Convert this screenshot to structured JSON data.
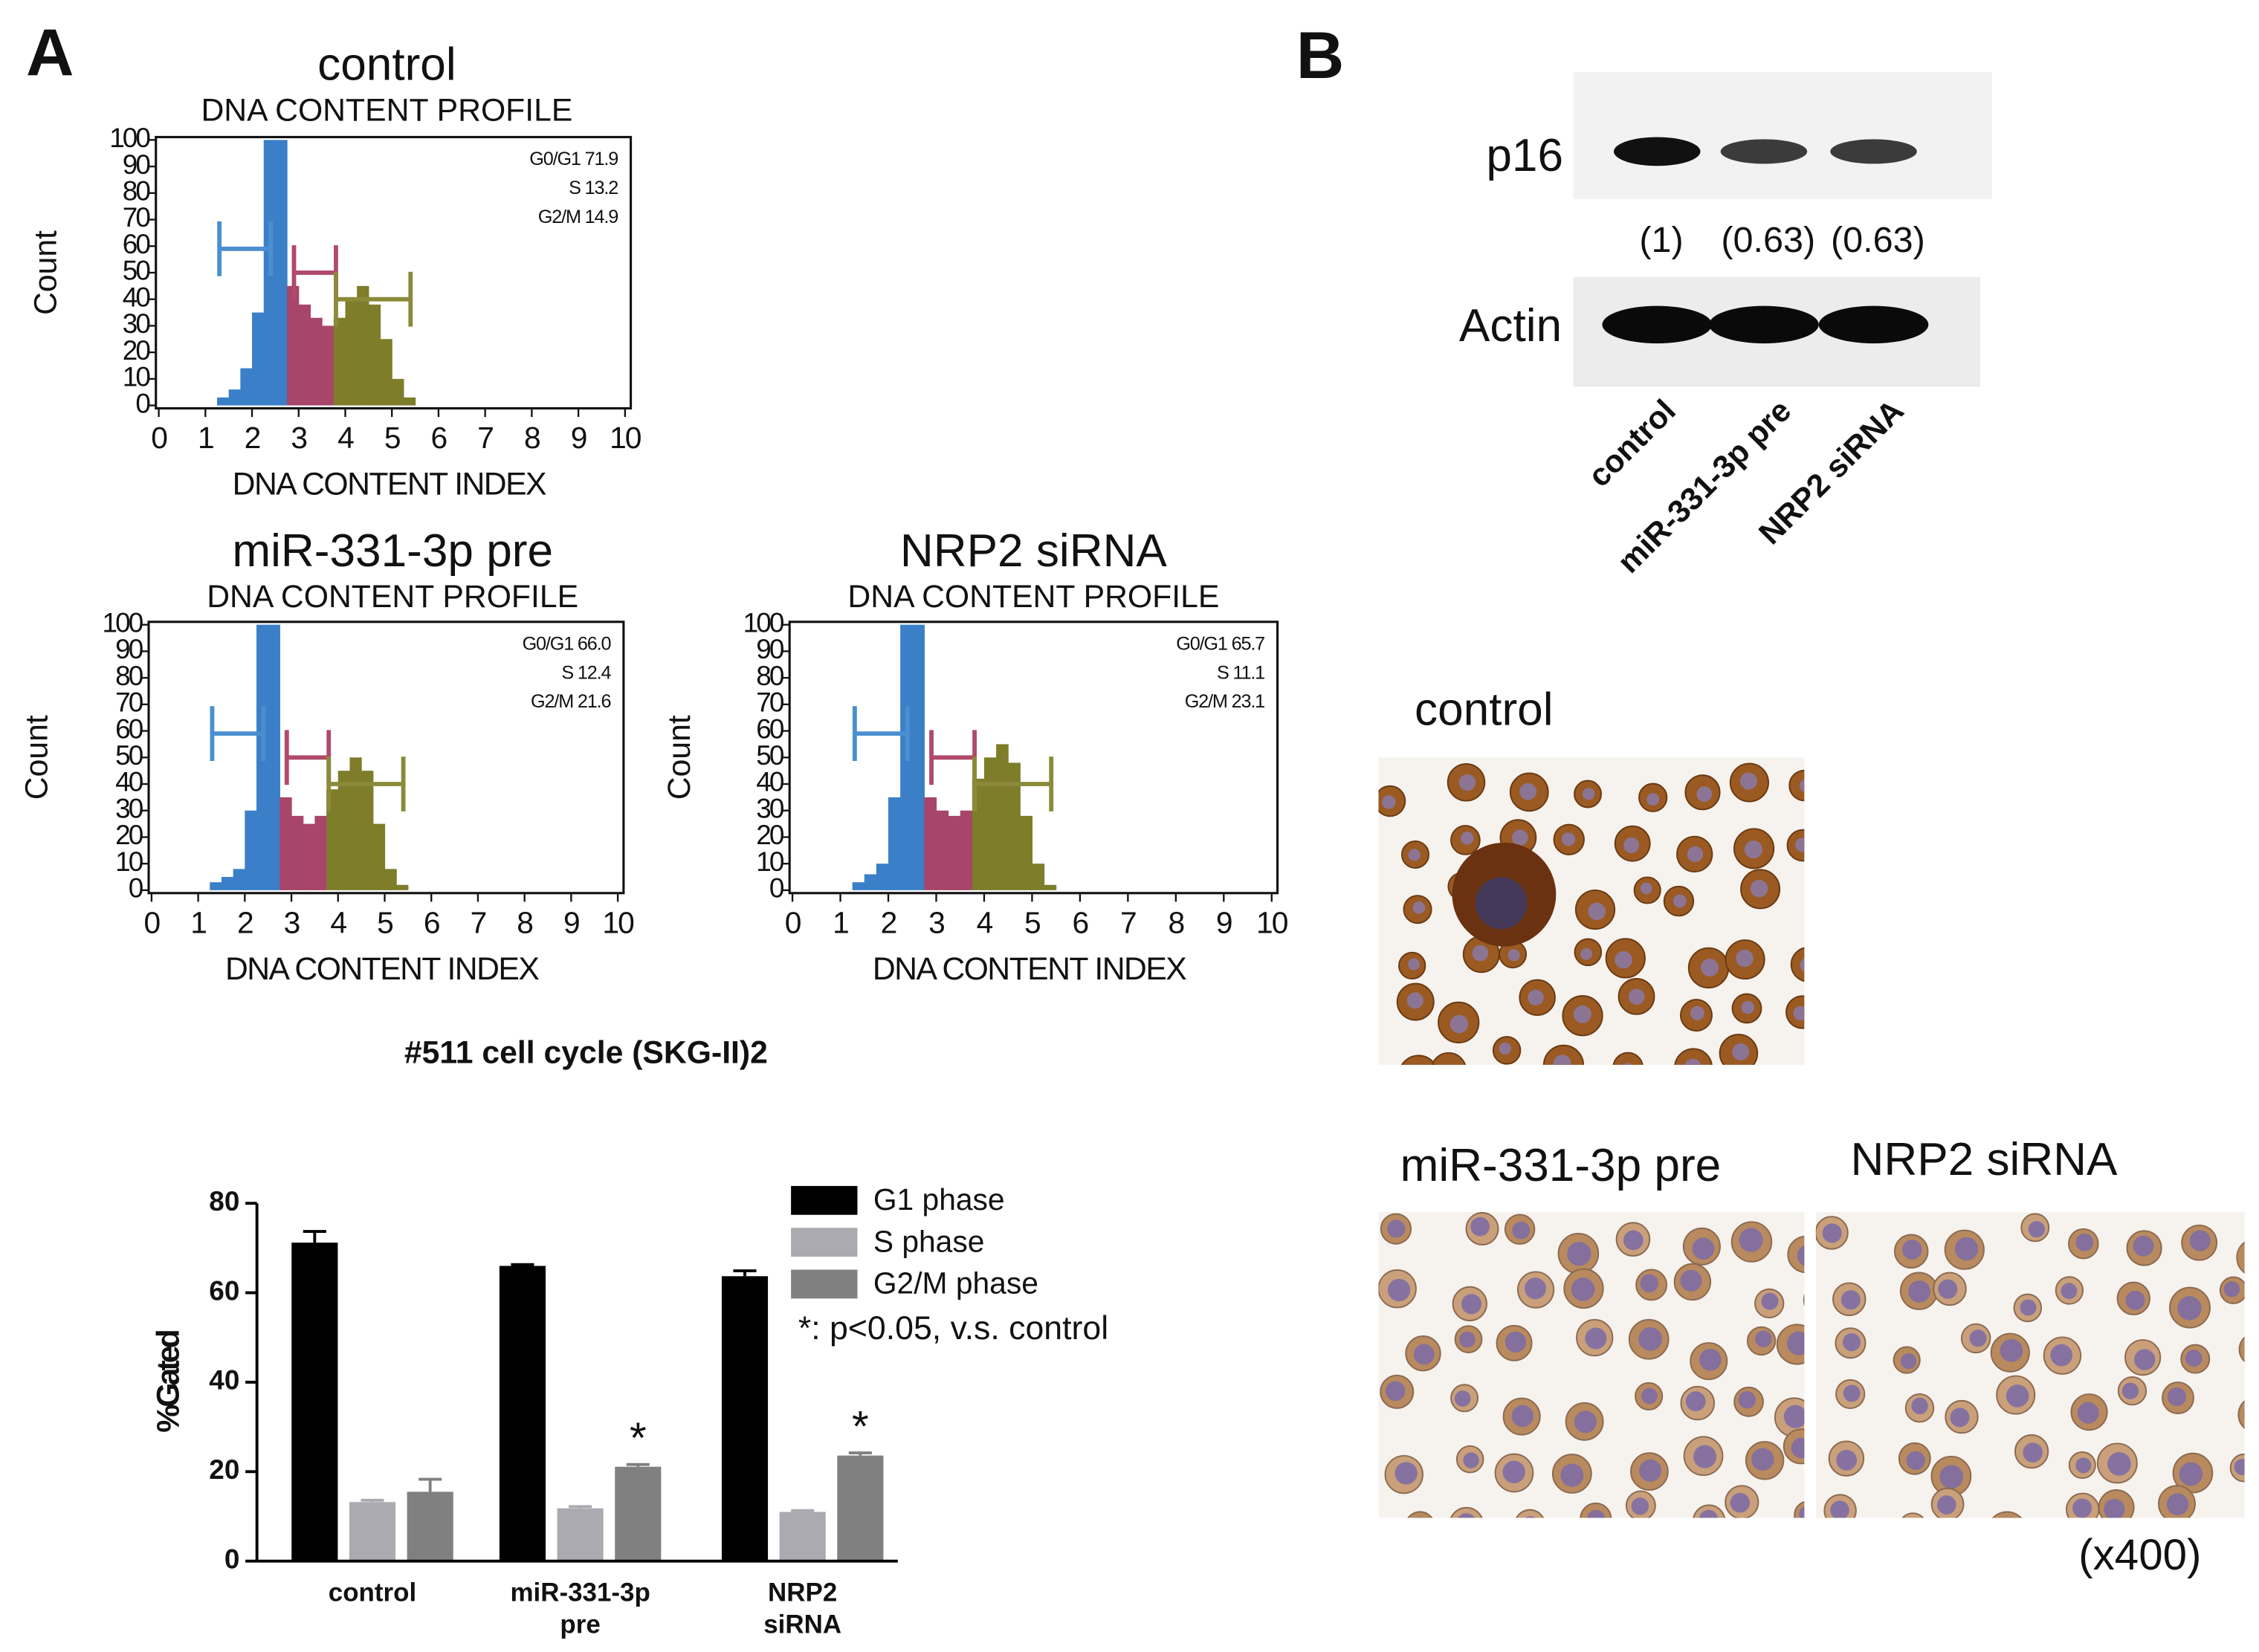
{
  "panel_labels": [
    "A",
    "B"
  ],
  "chart_data": [
    {
      "type": "histogram",
      "title": "control",
      "subtitle": "DNA CONTENT PROFILE",
      "xlabel": "DNA CONTENT INDEX",
      "ylabel": "Count",
      "xlim": [
        0,
        10
      ],
      "xticks": [
        0,
        1,
        2,
        3,
        4,
        5,
        6,
        7,
        8,
        9,
        10
      ],
      "ylim": [
        0,
        100
      ],
      "yticks": [
        0,
        10,
        20,
        30,
        40,
        50,
        60,
        70,
        80,
        90,
        100
      ],
      "annotations": [
        "G0/G1 71.9",
        "S 13.2",
        "G2/M 14.9"
      ],
      "series": [
        {
          "color": "#3a7fc8",
          "bins": [
            1.25,
            1.5,
            1.75,
            2,
            2.25,
            2.5,
            2.75
          ],
          "counts": [
            3,
            6,
            14,
            35,
            100,
            100
          ]
        },
        {
          "color": "#a8456a",
          "bins": [
            2.75,
            3,
            3.25,
            3.5,
            3.75
          ],
          "counts": [
            45,
            38,
            33,
            30
          ]
        },
        {
          "color": "#7d7d2a",
          "bins": [
            3.75,
            4,
            4.25,
            4.5,
            4.75,
            5,
            5.25,
            5.5
          ],
          "counts": [
            33,
            40,
            45,
            38,
            25,
            10,
            3
          ]
        }
      ],
      "gates": [
        {
          "color": "#4a8fd0",
          "x": [
            1.3,
            2.4
          ],
          "y": 59
        },
        {
          "color": "#b04a6a",
          "x": [
            2.9,
            3.8
          ],
          "y": 50
        },
        {
          "color": "#8a8a3a",
          "x": [
            3.8,
            5.4
          ],
          "y": 40
        }
      ]
    },
    {
      "type": "histogram",
      "title": "miR-331-3p pre",
      "subtitle": "DNA CONTENT PROFILE",
      "xlabel": "DNA CONTENT INDEX",
      "ylabel": "Count",
      "xlim": [
        0,
        10
      ],
      "xticks": [
        0,
        1,
        2,
        3,
        4,
        5,
        6,
        7,
        8,
        9,
        10
      ],
      "ylim": [
        0,
        100
      ],
      "yticks": [
        0,
        10,
        20,
        30,
        40,
        50,
        60,
        70,
        80,
        90,
        100
      ],
      "annotations": [
        "G0/G1 66.0",
        "S 12.4",
        "G2/M 21.6"
      ],
      "series": [
        {
          "color": "#3a7fc8",
          "bins": [
            1.25,
            1.5,
            1.75,
            2,
            2.25,
            2.5,
            2.75
          ],
          "counts": [
            3,
            5,
            8,
            30,
            100,
            100
          ]
        },
        {
          "color": "#a8456a",
          "bins": [
            2.75,
            3,
            3.25,
            3.5,
            3.75
          ],
          "counts": [
            35,
            28,
            25,
            28
          ]
        },
        {
          "color": "#7d7d2a",
          "bins": [
            3.75,
            4,
            4.25,
            4.5,
            4.75,
            5,
            5.25,
            5.5
          ],
          "counts": [
            38,
            45,
            50,
            45,
            25,
            8,
            2
          ]
        }
      ],
      "gates": [
        {
          "color": "#4a8fd0",
          "x": [
            1.3,
            2.4
          ],
          "y": 59
        },
        {
          "color": "#b04a6a",
          "x": [
            2.9,
            3.8
          ],
          "y": 50
        },
        {
          "color": "#8a8a3a",
          "x": [
            3.8,
            5.4
          ],
          "y": 40
        }
      ]
    },
    {
      "type": "histogram",
      "title": "NRP2 siRNA",
      "subtitle": "DNA CONTENT PROFILE",
      "xlabel": "DNA CONTENT INDEX",
      "ylabel": "Count",
      "xlim": [
        0,
        10
      ],
      "xticks": [
        0,
        1,
        2,
        3,
        4,
        5,
        6,
        7,
        8,
        9,
        10
      ],
      "ylim": [
        0,
        100
      ],
      "yticks": [
        0,
        10,
        20,
        30,
        40,
        50,
        60,
        70,
        80,
        90,
        100
      ],
      "annotations": [
        "G0/G1 65.7",
        "S 11.1",
        "G2/M 23.1"
      ],
      "series": [
        {
          "color": "#3a7fc8",
          "bins": [
            1.25,
            1.5,
            1.75,
            2,
            2.25,
            2.5,
            2.75
          ],
          "counts": [
            3,
            6,
            10,
            35,
            100,
            100
          ]
        },
        {
          "color": "#a8456a",
          "bins": [
            2.75,
            3,
            3.25,
            3.5,
            3.75
          ],
          "counts": [
            35,
            30,
            28,
            30
          ]
        },
        {
          "color": "#7d7d2a",
          "bins": [
            3.75,
            4,
            4.25,
            4.5,
            4.75,
            5,
            5.25,
            5.5
          ],
          "counts": [
            42,
            50,
            55,
            48,
            28,
            10,
            2
          ]
        }
      ],
      "gates": [
        {
          "color": "#4a8fd0",
          "x": [
            1.3,
            2.4
          ],
          "y": 59
        },
        {
          "color": "#b04a6a",
          "x": [
            2.9,
            3.8
          ],
          "y": 50
        },
        {
          "color": "#8a8a3a",
          "x": [
            3.8,
            5.4
          ],
          "y": 40
        }
      ]
    },
    {
      "type": "bar",
      "title": "#511 cell cycle (SKG-II)2",
      "ylabel": "%Gated",
      "note": "*: p<0.05, v.s. control",
      "legend": "top-right",
      "categories": [
        [
          "control"
        ],
        [
          "miR-331-3p",
          "pre"
        ],
        [
          "NRP2",
          "siRNA"
        ]
      ],
      "ylim": [
        0,
        80
      ],
      "yticks": [
        0,
        20,
        40,
        60,
        80
      ],
      "series": [
        {
          "name": "G1 phase",
          "color": "#000000",
          "values": [
            71.2,
            66.0,
            63.7
          ],
          "errors": [
            2.5,
            0.3,
            1.2
          ]
        },
        {
          "name": "S phase",
          "color": "#aaaab0",
          "values": [
            13.2,
            11.8,
            11.0
          ],
          "errors": [
            0.4,
            0.4,
            0.3
          ]
        },
        {
          "name": "G2/M phase",
          "color": "#808080",
          "values": [
            15.5,
            21.1,
            23.6
          ],
          "errors": [
            2.8,
            0.5,
            0.6
          ],
          "significance": [
            null,
            "*",
            "*"
          ]
        }
      ]
    }
  ],
  "western_blot": {
    "rows": [
      "p16",
      "Actin"
    ],
    "lanes": [
      "control",
      "miR-331-3p pre",
      "NRP2 siRNA"
    ],
    "quantification": {
      "values": [
        1,
        0.63,
        0.63
      ],
      "value_labels": [
        "(1)",
        "(0.63)",
        "(0.63)"
      ]
    }
  },
  "micrographs": {
    "labels": [
      "control",
      "miR-331-3p pre",
      "NRP2 siRNA"
    ],
    "magnification": "(x400)"
  }
}
